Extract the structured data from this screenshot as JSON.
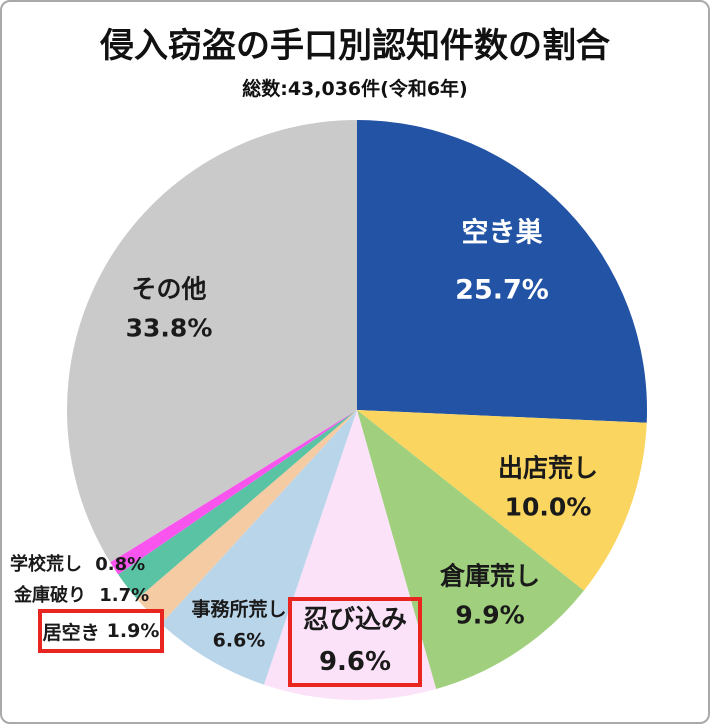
{
  "header": {
    "title": "侵入窃盗の手口別認知件数の割合",
    "subtitle": "総数:43,036件(令和6年)"
  },
  "chart_data": {
    "type": "pie",
    "title": "侵入窃盗の手口別認知件数の割合",
    "subtitle": "総数:43,036件(令和6年)",
    "total_count": 43036,
    "unit": "%",
    "start_angle_deg": 0,
    "direction": "clockwise",
    "legend_position": "none",
    "highlight_color": "#e8251f",
    "slices": [
      {
        "label": "空き巣",
        "value": 25.7,
        "pct": "25.7%",
        "color": "#2253a5",
        "highlighted": false
      },
      {
        "label": "出店荒し",
        "value": 10.0,
        "pct": "10.0%",
        "color": "#fad55f",
        "highlighted": false
      },
      {
        "label": "倉庫荒し",
        "value": 9.9,
        "pct": "9.9%",
        "color": "#a0d07d",
        "highlighted": false
      },
      {
        "label": "忍び込み",
        "value": 9.6,
        "pct": "9.6%",
        "color": "#fbe2f9",
        "highlighted": true
      },
      {
        "label": "事務所荒し",
        "value": 6.6,
        "pct": "6.6%",
        "color": "#b9d5ea",
        "highlighted": false
      },
      {
        "label": "居空き",
        "value": 1.9,
        "pct": "1.9%",
        "color": "#f5cba3",
        "highlighted": true
      },
      {
        "label": "金庫破り",
        "value": 1.7,
        "pct": "1.7%",
        "color": "#5ac3a4",
        "highlighted": false
      },
      {
        "label": "学校荒し",
        "value": 0.8,
        "pct": "0.8%",
        "color": "#f955ee",
        "highlighted": false
      },
      {
        "label": "その他",
        "value": 33.8,
        "pct": "33.8%",
        "color": "#cbcaca",
        "highlighted": false
      }
    ]
  }
}
